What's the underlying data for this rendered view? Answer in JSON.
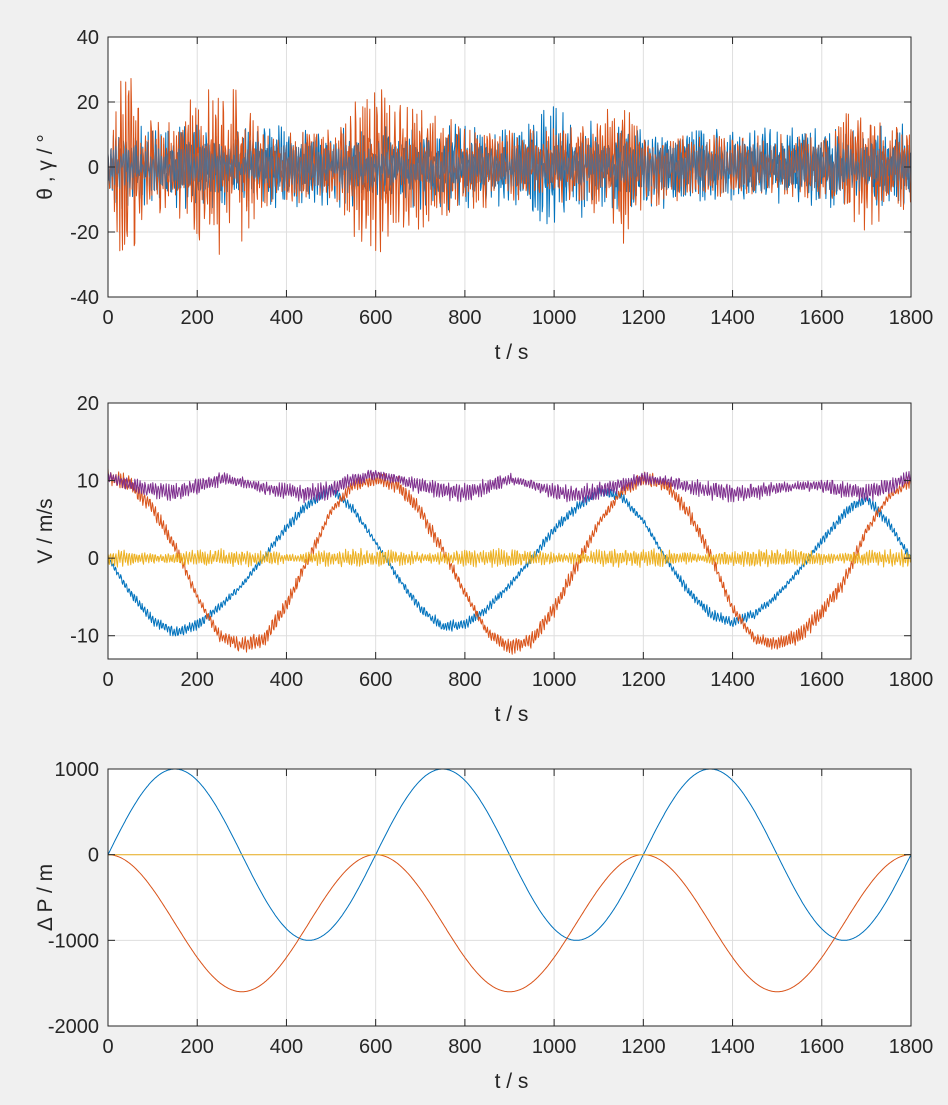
{
  "colors": {
    "background": "#f0f0f0",
    "axes_background": "#ffffff",
    "axis": "#262626",
    "grid": "#dedede",
    "blue": "#0072BD",
    "orange": "#D95319",
    "yellow": "#EDB120",
    "purple": "#7E2F8E"
  },
  "chart_data": [
    {
      "type": "line",
      "xlabel": "t  / s",
      "ylabel": "θ , γ / °",
      "xlim": [
        0,
        1800
      ],
      "ylim": [
        -40,
        40
      ],
      "xticks": [
        "0",
        "200",
        "400",
        "600",
        "800",
        "1000",
        "1200",
        "1400",
        "1600",
        "1800"
      ],
      "yticks": [
        "-40",
        "-20",
        "0",
        "20",
        "40"
      ],
      "grid": true,
      "series": [
        {
          "color": "#0072BD",
          "envelope_x": [
            0,
            50,
            100,
            200,
            300,
            400,
            500,
            600,
            700,
            800,
            900,
            1000,
            1100,
            1200,
            1300,
            1400,
            1500,
            1600,
            1700,
            1800
          ],
          "envelope_amplitude": [
            13,
            14,
            14,
            13,
            13,
            14,
            13,
            14,
            13,
            14,
            13,
            21,
            14,
            13,
            13,
            12,
            13,
            13,
            13,
            14
          ],
          "mean": 0
        },
        {
          "color": "#D95319",
          "envelope_x": [
            0,
            25,
            50,
            80,
            150,
            200,
            250,
            300,
            350,
            400,
            500,
            600,
            650,
            700,
            800,
            900,
            1000,
            1100,
            1160,
            1200,
            1300,
            1400,
            1500,
            1600,
            1700,
            1800
          ],
          "envelope_amplitude": [
            4,
            30,
            32,
            18,
            15,
            25,
            27,
            24,
            14,
            12,
            13,
            30,
            25,
            21,
            14,
            12,
            12,
            15,
            25,
            14,
            10,
            10,
            10,
            11,
            22,
            13
          ],
          "mean": 0
        },
        {
          "color": "#5b6b86",
          "envelope_x": [
            0,
            1800
          ],
          "envelope_amplitude": [
            8,
            8
          ],
          "mean": 0
        }
      ]
    },
    {
      "type": "line",
      "xlabel": "t  / s",
      "ylabel": "V / m/s",
      "xlim": [
        0,
        1800
      ],
      "ylim": [
        -13,
        20
      ],
      "xticks": [
        "0",
        "200",
        "400",
        "600",
        "800",
        "1000",
        "1200",
        "1400",
        "1600",
        "1800"
      ],
      "yticks": [
        "-10",
        "0",
        "10",
        "20"
      ],
      "grid": true,
      "series": [
        {
          "color": "#0072BD",
          "x": [
            0,
            50,
            100,
            150,
            200,
            250,
            300,
            350,
            400,
            450,
            500,
            550,
            600,
            650,
            700,
            750,
            800,
            850,
            900,
            950,
            1000,
            1050,
            1100,
            1150,
            1200,
            1250,
            1300,
            1350,
            1400,
            1450,
            1500,
            1550,
            1600,
            1650,
            1700,
            1750,
            1800
          ],
          "values": [
            0,
            -4.5,
            -8,
            -9.6,
            -8.6,
            -6.3,
            -3.5,
            0.2,
            4,
            7,
            8.9,
            6.3,
            2,
            -2.5,
            -6.5,
            -8.8,
            -8.5,
            -6.5,
            -3.5,
            0,
            3.7,
            6.5,
            8.6,
            8,
            4.8,
            0,
            -4.2,
            -7.2,
            -8.4,
            -7.2,
            -4.8,
            -1.5,
            2.2,
            5.8,
            7.8,
            4.5,
            0
          ],
          "ripple": 0.8
        },
        {
          "color": "#D95319",
          "x": [
            0,
            50,
            100,
            150,
            200,
            250,
            300,
            350,
            400,
            450,
            500,
            550,
            600,
            650,
            700,
            750,
            800,
            850,
            900,
            950,
            1000,
            1050,
            1100,
            1150,
            1200,
            1250,
            1300,
            1350,
            1400,
            1450,
            1500,
            1550,
            1600,
            1650,
            1700,
            1750,
            1800
          ],
          "values": [
            10.5,
            9.5,
            6.5,
            1.5,
            -5,
            -10,
            -11.2,
            -10.5,
            -6,
            0,
            6,
            9.5,
            10.2,
            9.5,
            6,
            1.2,
            -4.5,
            -9.5,
            -11.5,
            -10.5,
            -6.5,
            -1,
            4.5,
            8.5,
            10.2,
            9.5,
            6,
            0.5,
            -6.5,
            -10.5,
            -11,
            -10,
            -7,
            -3,
            3.5,
            8,
            10
          ],
          "ripple": 1.2
        },
        {
          "color": "#EDB120",
          "x": [
            0,
            1800
          ],
          "values": [
            0,
            0
          ],
          "ripple": 1.3
        },
        {
          "color": "#7E2F8E",
          "x": [
            0,
            50,
            100,
            150,
            200,
            250,
            300,
            350,
            400,
            450,
            500,
            550,
            600,
            650,
            700,
            750,
            800,
            850,
            900,
            950,
            1000,
            1050,
            1100,
            1150,
            1200,
            1250,
            1300,
            1350,
            1400,
            1450,
            1500,
            1550,
            1600,
            1650,
            1700,
            1750,
            1800
          ],
          "values": [
            10.5,
            9.5,
            8.8,
            8.5,
            9.3,
            10.2,
            9.8,
            9,
            8.6,
            8.3,
            8.8,
            10.2,
            10.8,
            10.2,
            9.3,
            8.7,
            8.4,
            9.2,
            10.2,
            9.5,
            8.6,
            8.2,
            8.6,
            9.5,
            10.3,
            10,
            9.2,
            8.7,
            8.4,
            8.6,
            9,
            9.3,
            9.4,
            8.8,
            8.4,
            9.2,
            10.5
          ],
          "ripple": 1.3
        }
      ]
    },
    {
      "type": "line",
      "xlabel": "t  / s",
      "ylabel": "Δ P / m",
      "xlim": [
        0,
        1800
      ],
      "ylim": [
        -2000,
        1000
      ],
      "xticks": [
        "0",
        "200",
        "400",
        "600",
        "800",
        "1000",
        "1200",
        "1400",
        "1600",
        "1800"
      ],
      "yticks": [
        "-2000",
        "-1000",
        "0",
        "1000"
      ],
      "grid": true,
      "series": [
        {
          "color": "#0072BD",
          "function": "sine",
          "amplitude": 1000,
          "period": 600,
          "offset": 0
        },
        {
          "color": "#D95319",
          "function": "cosine_minus_one",
          "amplitude": 800,
          "period": 600,
          "offset": -800
        },
        {
          "color": "#EDB120",
          "function": "constant",
          "amplitude": 0,
          "period": 600,
          "offset": 0
        }
      ]
    }
  ]
}
